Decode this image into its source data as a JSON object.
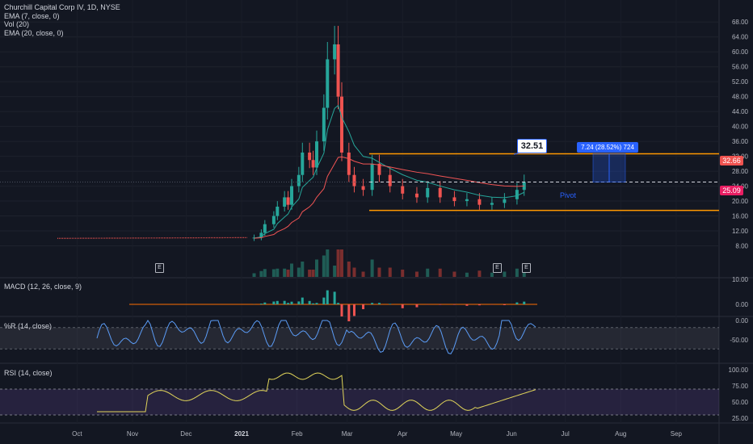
{
  "header": {
    "symbol_line": "Churchill Capital Corp IV, 1D, NYSE",
    "indicators": [
      "EMA (7, close, 0)",
      "Vol (20)",
      "EMA (20, close, 0)"
    ]
  },
  "panes": {
    "macd_label": "MACD (12, 26, close, 9)",
    "willr_label": "%R (14, close)",
    "rsi_label": "RSI (14, close)"
  },
  "annotations": {
    "callout": "32.51",
    "measure": "7.24 (28.52%) 724",
    "pivot": "Pivot",
    "earnings_marker": "E"
  },
  "price_tags": {
    "resistance": "32.66",
    "last": "25.09"
  },
  "colors": {
    "background": "#131722",
    "up": "#26a69a",
    "down": "#ef5350",
    "ema7": "#26a69a",
    "ema20": "#f05454",
    "level_line": "#ff9800",
    "macd": "#2962ff",
    "signal": "#ff6d00",
    "willr": "#5b9cf6",
    "rsi": "#e1d55a",
    "rsi_band": "#7e57c2"
  },
  "chart_data": {
    "type": "candlestick",
    "price_axis": [
      "68.00",
      "64.00",
      "60.00",
      "56.00",
      "52.00",
      "48.00",
      "44.00",
      "40.00",
      "36.00",
      "32.00",
      "28.00",
      "24.00",
      "20.00",
      "16.00",
      "12.00",
      "8.00"
    ],
    "time_axis": [
      "Oct",
      "Nov",
      "Dec",
      "2021",
      "Feb",
      "Mar",
      "Apr",
      "May",
      "Jun",
      "Jul",
      "Aug",
      "Sep"
    ],
    "price_range": [
      4,
      70
    ],
    "candles": [
      {
        "date": "2021-01-08",
        "close": 10.2
      },
      {
        "date": "2021-01-12",
        "close": 11.5
      },
      {
        "date": "2021-01-14",
        "close": 13.8
      },
      {
        "date": "2021-01-19",
        "close": 16.0
      },
      {
        "date": "2021-01-21",
        "close": 18.5
      },
      {
        "date": "2021-01-25",
        "close": 21.0
      },
      {
        "date": "2021-01-27",
        "close": 19.0
      },
      {
        "date": "2021-01-29",
        "close": 24.0
      },
      {
        "date": "2021-02-02",
        "close": 27.0
      },
      {
        "date": "2021-02-04",
        "close": 33.0
      },
      {
        "date": "2021-02-08",
        "close": 31.0
      },
      {
        "date": "2021-02-10",
        "close": 29.0
      },
      {
        "date": "2021-02-12",
        "close": 36.0
      },
      {
        "date": "2021-02-16",
        "close": 45.0
      },
      {
        "date": "2021-02-18",
        "close": 58.0
      },
      {
        "date": "2021-02-22",
        "close": 62.0
      },
      {
        "date": "2021-02-24",
        "close": 48.0
      },
      {
        "date": "2021-02-26",
        "close": 33.0
      },
      {
        "date": "2021-03-02",
        "close": 27.0
      },
      {
        "date": "2021-03-05",
        "close": 24.0
      },
      {
        "date": "2021-03-10",
        "close": 23.0
      },
      {
        "date": "2021-03-15",
        "close": 30.0
      },
      {
        "date": "2021-03-19",
        "close": 27.0
      },
      {
        "date": "2021-03-25",
        "close": 24.0
      },
      {
        "date": "2021-04-01",
        "close": 22.0
      },
      {
        "date": "2021-04-09",
        "close": 21.0
      },
      {
        "date": "2021-04-15",
        "close": 23.5
      },
      {
        "date": "2021-04-22",
        "close": 21.0
      },
      {
        "date": "2021-04-30",
        "close": 20.0
      },
      {
        "date": "2021-05-07",
        "close": 20.5
      },
      {
        "date": "2021-05-14",
        "close": 19.0
      },
      {
        "date": "2021-05-21",
        "close": 19.5
      },
      {
        "date": "2021-05-28",
        "close": 20.5
      },
      {
        "date": "2021-06-04",
        "close": 23.0
      },
      {
        "date": "2021-06-08",
        "close": 25.09
      }
    ],
    "levels": {
      "resistance": 32.66,
      "support": 17.5,
      "pivot": 25.09,
      "callout": 32.51
    },
    "macd_axis": [
      "10.00",
      "0.00"
    ],
    "willr_axis": [
      "0.00",
      "-50.00"
    ],
    "rsi_axis": [
      "100.00",
      "75.00",
      "50.00",
      "25.00"
    ],
    "rsi_bands": [
      70,
      30
    ],
    "willr_bands": [
      -20,
      -80
    ]
  }
}
